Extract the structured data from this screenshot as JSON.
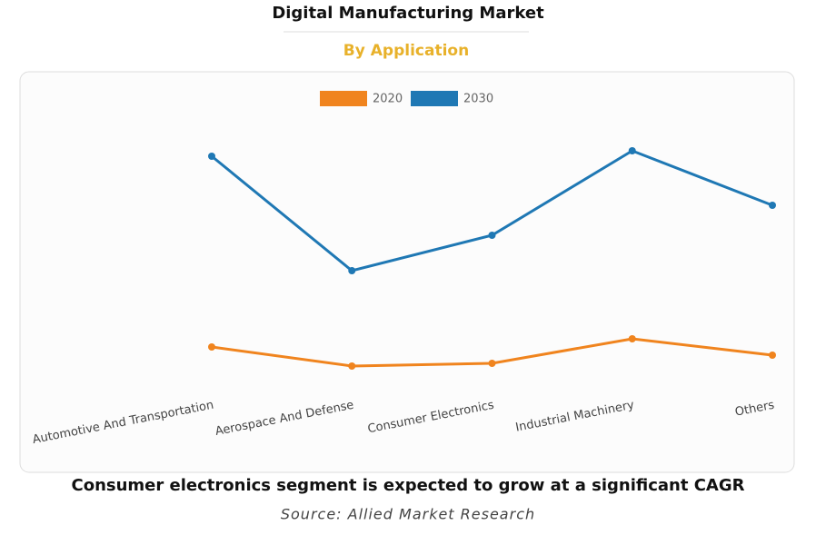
{
  "chart_data": {
    "type": "line",
    "title": "Digital Manufacturing Market",
    "subtitle": "By Application",
    "categories": [
      "Automotive And Transportation",
      "Aerospace And Defense",
      "Consumer Electronics",
      "Industrial Machinery",
      "Others"
    ],
    "series": [
      {
        "name": "2020",
        "color": "#f0841e",
        "values": [
          16,
          9,
          10,
          19,
          13
        ]
      },
      {
        "name": "2030",
        "color": "#1f78b4",
        "values": [
          86,
          44,
          57,
          88,
          68
        ]
      }
    ],
    "ylim": [
      0,
      100
    ],
    "caption": "Consumer electronics segment is expected to grow at a significant CAGR",
    "source": "Source: Allied Market Research"
  }
}
